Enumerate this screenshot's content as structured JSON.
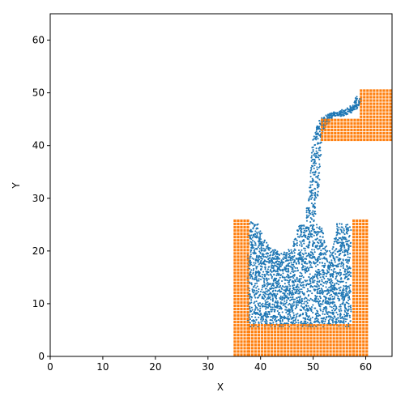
{
  "chart_data": {
    "type": "scatter",
    "title": "",
    "xlabel": "X",
    "ylabel": "Y",
    "xlim": [
      0,
      65
    ],
    "ylim": [
      0,
      65
    ],
    "xticks": [
      0,
      10,
      20,
      30,
      40,
      50,
      60
    ],
    "yticks": [
      0,
      10,
      20,
      30,
      40,
      50,
      60
    ],
    "xtick_labels": [
      "0",
      "10",
      "20",
      "30",
      "40",
      "50",
      "60"
    ],
    "ytick_labels": [
      "0",
      "10",
      "20",
      "30",
      "40",
      "50",
      "60"
    ],
    "grid": false,
    "legend": "none",
    "series": [
      {
        "color": "#1f77b4",
        "marker": "point",
        "description_regions": {
          "basin_fill_x": [
            37.5,
            57.2
          ],
          "basin_fill_y_bottom": 5.6,
          "basin_surface_profile": [
            [
              37.6,
              25.5
            ],
            [
              39.5,
              25.5
            ],
            [
              40.5,
              22.5
            ],
            [
              42,
              20.5
            ],
            [
              44,
              19.8
            ],
            [
              46,
              20.5
            ],
            [
              47,
              24.8
            ],
            [
              49.5,
              25
            ],
            [
              51.5,
              25
            ],
            [
              52.5,
              21
            ],
            [
              53.5,
              19.5
            ],
            [
              54.5,
              25.2
            ],
            [
              57.2,
              25.2
            ]
          ],
          "stream_path": [
            [
              49.3,
              25.5
            ],
            [
              49.8,
              29
            ],
            [
              50.3,
              33
            ],
            [
              50.5,
              37
            ],
            [
              50.8,
              41
            ],
            [
              51.3,
              43.5
            ],
            [
              52.5,
              45
            ],
            [
              54,
              45.8
            ],
            [
              56,
              46.3
            ],
            [
              58,
              47.3
            ],
            [
              58.8,
              49
            ]
          ]
        }
      },
      {
        "color": "#ff7f0e",
        "marker": "square",
        "rectangles": [
          {
            "x": [
              34.8,
              37.5
            ],
            "y": [
              0,
              25.5
            ]
          },
          {
            "x": [
              37.5,
              57.4
            ],
            "y": [
              0,
              5.6
            ]
          },
          {
            "x": [
              57.4,
              60.3
            ],
            "y": [
              0,
              25.5
            ]
          },
          {
            "x": [
              51.4,
              58.8
            ],
            "y": [
              40.8,
              44.8
            ]
          },
          {
            "x": [
              58.8,
              64.8
            ],
            "y": [
              40.8,
              50.4
            ]
          }
        ],
        "cell_size": 0.62
      }
    ]
  }
}
